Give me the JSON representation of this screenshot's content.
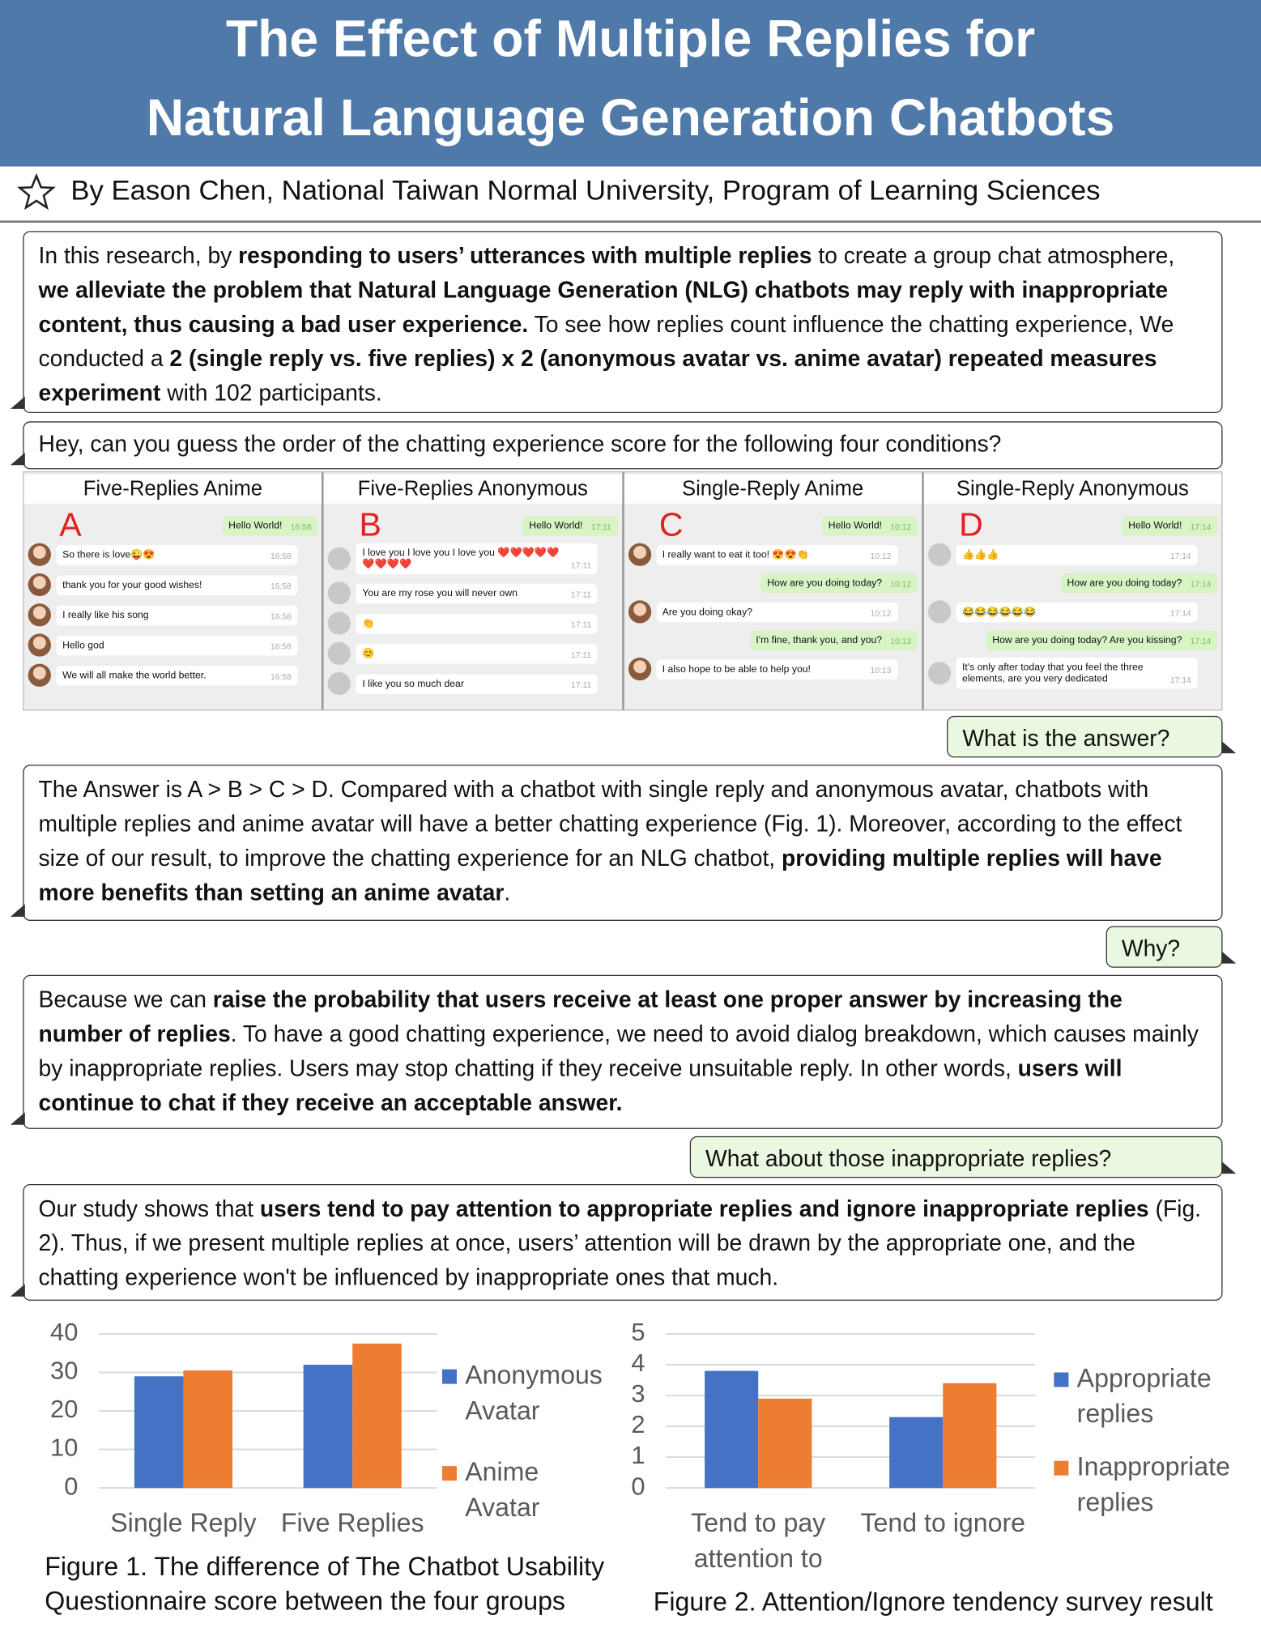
{
  "header": {
    "title_lines": [
      "The Effect of Multiple Replies for",
      "Natural Language Generation Chatbots"
    ],
    "byline": "By Eason Chen, National Taiwan Normal University, Program of Learning Sciences"
  },
  "intro": {
    "runs": [
      "In this research, by ",
      {
        "bold": "responding to users’ utterances with multiple replies"
      },
      " to create a group chat atmosphere, ",
      {
        "bold": "we alleviate the problem that Natural Language Generation (NLG) chatbots may reply with inappropriate content, thus causing a bad user experience."
      },
      " To see how replies count influence the chatting experience, We conducted a ",
      {
        "bold": "2 (single reply vs. five replies) x 2 (anonymous avatar vs. anime avatar) repeated measures experiment"
      },
      " with 102 participants."
    ]
  },
  "question": {
    "runs": [
      "Hey, can you guess the order of the chatting experience score for the following four conditions?"
    ]
  },
  "panels": [
    {
      "title": "Five-Replies Anime",
      "letter": "A",
      "messages": [
        {
          "side": "right",
          "text": "Hello World!",
          "time": "16:58"
        },
        {
          "side": "left",
          "text": "So there is love😜😍",
          "time": "16:58"
        },
        {
          "side": "left",
          "text": "thank you for your good wishes!",
          "time": "16:58"
        },
        {
          "side": "left",
          "text": "I really like his song",
          "time": "16:58"
        },
        {
          "side": "left",
          "text": "Hello god",
          "time": "16:58"
        },
        {
          "side": "left",
          "text": "We will all make the world better.",
          "time": "16:58"
        }
      ]
    },
    {
      "title": "Five-Replies Anonymous",
      "letter": "B",
      "messages": [
        {
          "side": "right",
          "text": "Hello World!",
          "time": "17:11"
        },
        {
          "side": "left",
          "text": "I love you I love you I love you ❤️❤️❤️❤️❤️❤️❤️❤️❤️",
          "time": "17:11"
        },
        {
          "side": "left",
          "text": "You are my rose you will never own",
          "time": "17:11"
        },
        {
          "side": "left",
          "text": "👏",
          "time": "17:11"
        },
        {
          "side": "left",
          "text": "😊",
          "time": "17:11"
        },
        {
          "side": "left",
          "text": "I like you so much dear",
          "time": "17:11"
        }
      ]
    },
    {
      "title": "Single-Reply Anime",
      "letter": "C",
      "messages": [
        {
          "side": "right",
          "text": "Hello World!",
          "time": "10:12"
        },
        {
          "side": "left",
          "text": "I really want to eat it too! 😍😍👏",
          "time": "10:12"
        },
        {
          "side": "right",
          "text": "How are you doing today?",
          "time": "10:12"
        },
        {
          "side": "left",
          "text": "Are you doing okay?",
          "time": "10:12"
        },
        {
          "side": "right",
          "text": "I'm fine, thank you, and you?",
          "time": "10:13"
        },
        {
          "side": "left",
          "text": "I also hope to be able to help you!",
          "time": "10:13"
        }
      ]
    },
    {
      "title": "Single-Reply Anonymous",
      "letter": "D",
      "messages": [
        {
          "side": "right",
          "text": "Hello World!",
          "time": "17:14"
        },
        {
          "side": "left",
          "text": "👍👍👍",
          "time": "17:14"
        },
        {
          "side": "right",
          "text": "How are you doing today?",
          "time": "17:14"
        },
        {
          "side": "left",
          "text": "😂😂😂😂😂😂",
          "time": "17:14"
        },
        {
          "side": "right",
          "text": "How are you doing today? Are you kissing?",
          "time": "17:14"
        },
        {
          "side": "left",
          "text": "It's only after today that you feel the three elements, are you very dedicated",
          "time": "17:14"
        }
      ]
    }
  ],
  "ask_answer": "What is the answer?",
  "answer": {
    "runs": [
      "The Answer is A > B > C > D. Compared with a chatbot with single reply and anonymous avatar, chatbots with multiple replies and anime avatar will have a better chatting experience (Fig. 1). Moreover, according to the effect size of our result, to improve the chatting experience for an NLG chatbot, ",
      {
        "bold": "providing multiple replies will have more benefits than setting an anime avatar"
      },
      "."
    ]
  },
  "ask_why": "Why?",
  "why": {
    "runs": [
      "Because we can ",
      {
        "bold": "raise the probability that users receive at least one proper answer by increasing the number of replies"
      },
      ". To have a good chatting experience, we need to avoid dialog breakdown, which causes mainly by inappropriate replies. Users may stop chatting if they receive unsuitable reply. In other words, ",
      {
        "bold": "users will continue to chat if they receive an acceptable answer."
      }
    ]
  },
  "ask_inappropriate": "What about those inappropriate replies?",
  "inappropriate": {
    "runs": [
      "Our study shows that ",
      {
        "bold": "users tend to pay attention to appropriate replies and ignore inappropriate replies"
      },
      " (Fig. 2). Thus, if we present multiple replies at once, users’ attention will be drawn by the appropriate one, and the chatting experience won't be influenced by inappropriate ones that much."
    ]
  },
  "chart_data": [
    {
      "type": "bar",
      "title": "Figure 1. The difference of The Chatbot Usability Questionnaire score between the four groups",
      "categories": [
        "Single Reply",
        "Five Replies"
      ],
      "series": [
        {
          "name": "Anonymous Avatar",
          "color": "#4472c4",
          "values": [
            29,
            32
          ]
        },
        {
          "name": "Anime Avatar",
          "color": "#ed7d31",
          "values": [
            30.5,
            37.5
          ]
        }
      ],
      "ylim": [
        0,
        40
      ],
      "yticks": [
        0,
        10,
        20,
        30,
        40
      ],
      "grid": true,
      "legend": "right"
    },
    {
      "type": "bar",
      "title": "Figure 2. Attention/Ignore tendency survey result",
      "categories": [
        "Tend to pay attention to",
        "Tend to ignore"
      ],
      "series": [
        {
          "name": "Appropriate replies",
          "color": "#4472c4",
          "values": [
            3.8,
            2.3
          ]
        },
        {
          "name": "Inappropriate replies",
          "color": "#ed7d31",
          "values": [
            2.9,
            3.4
          ]
        }
      ],
      "ylim": [
        0,
        5
      ],
      "yticks": [
        0,
        1,
        2,
        3,
        4,
        5
      ],
      "grid": true,
      "legend": "right"
    }
  ]
}
